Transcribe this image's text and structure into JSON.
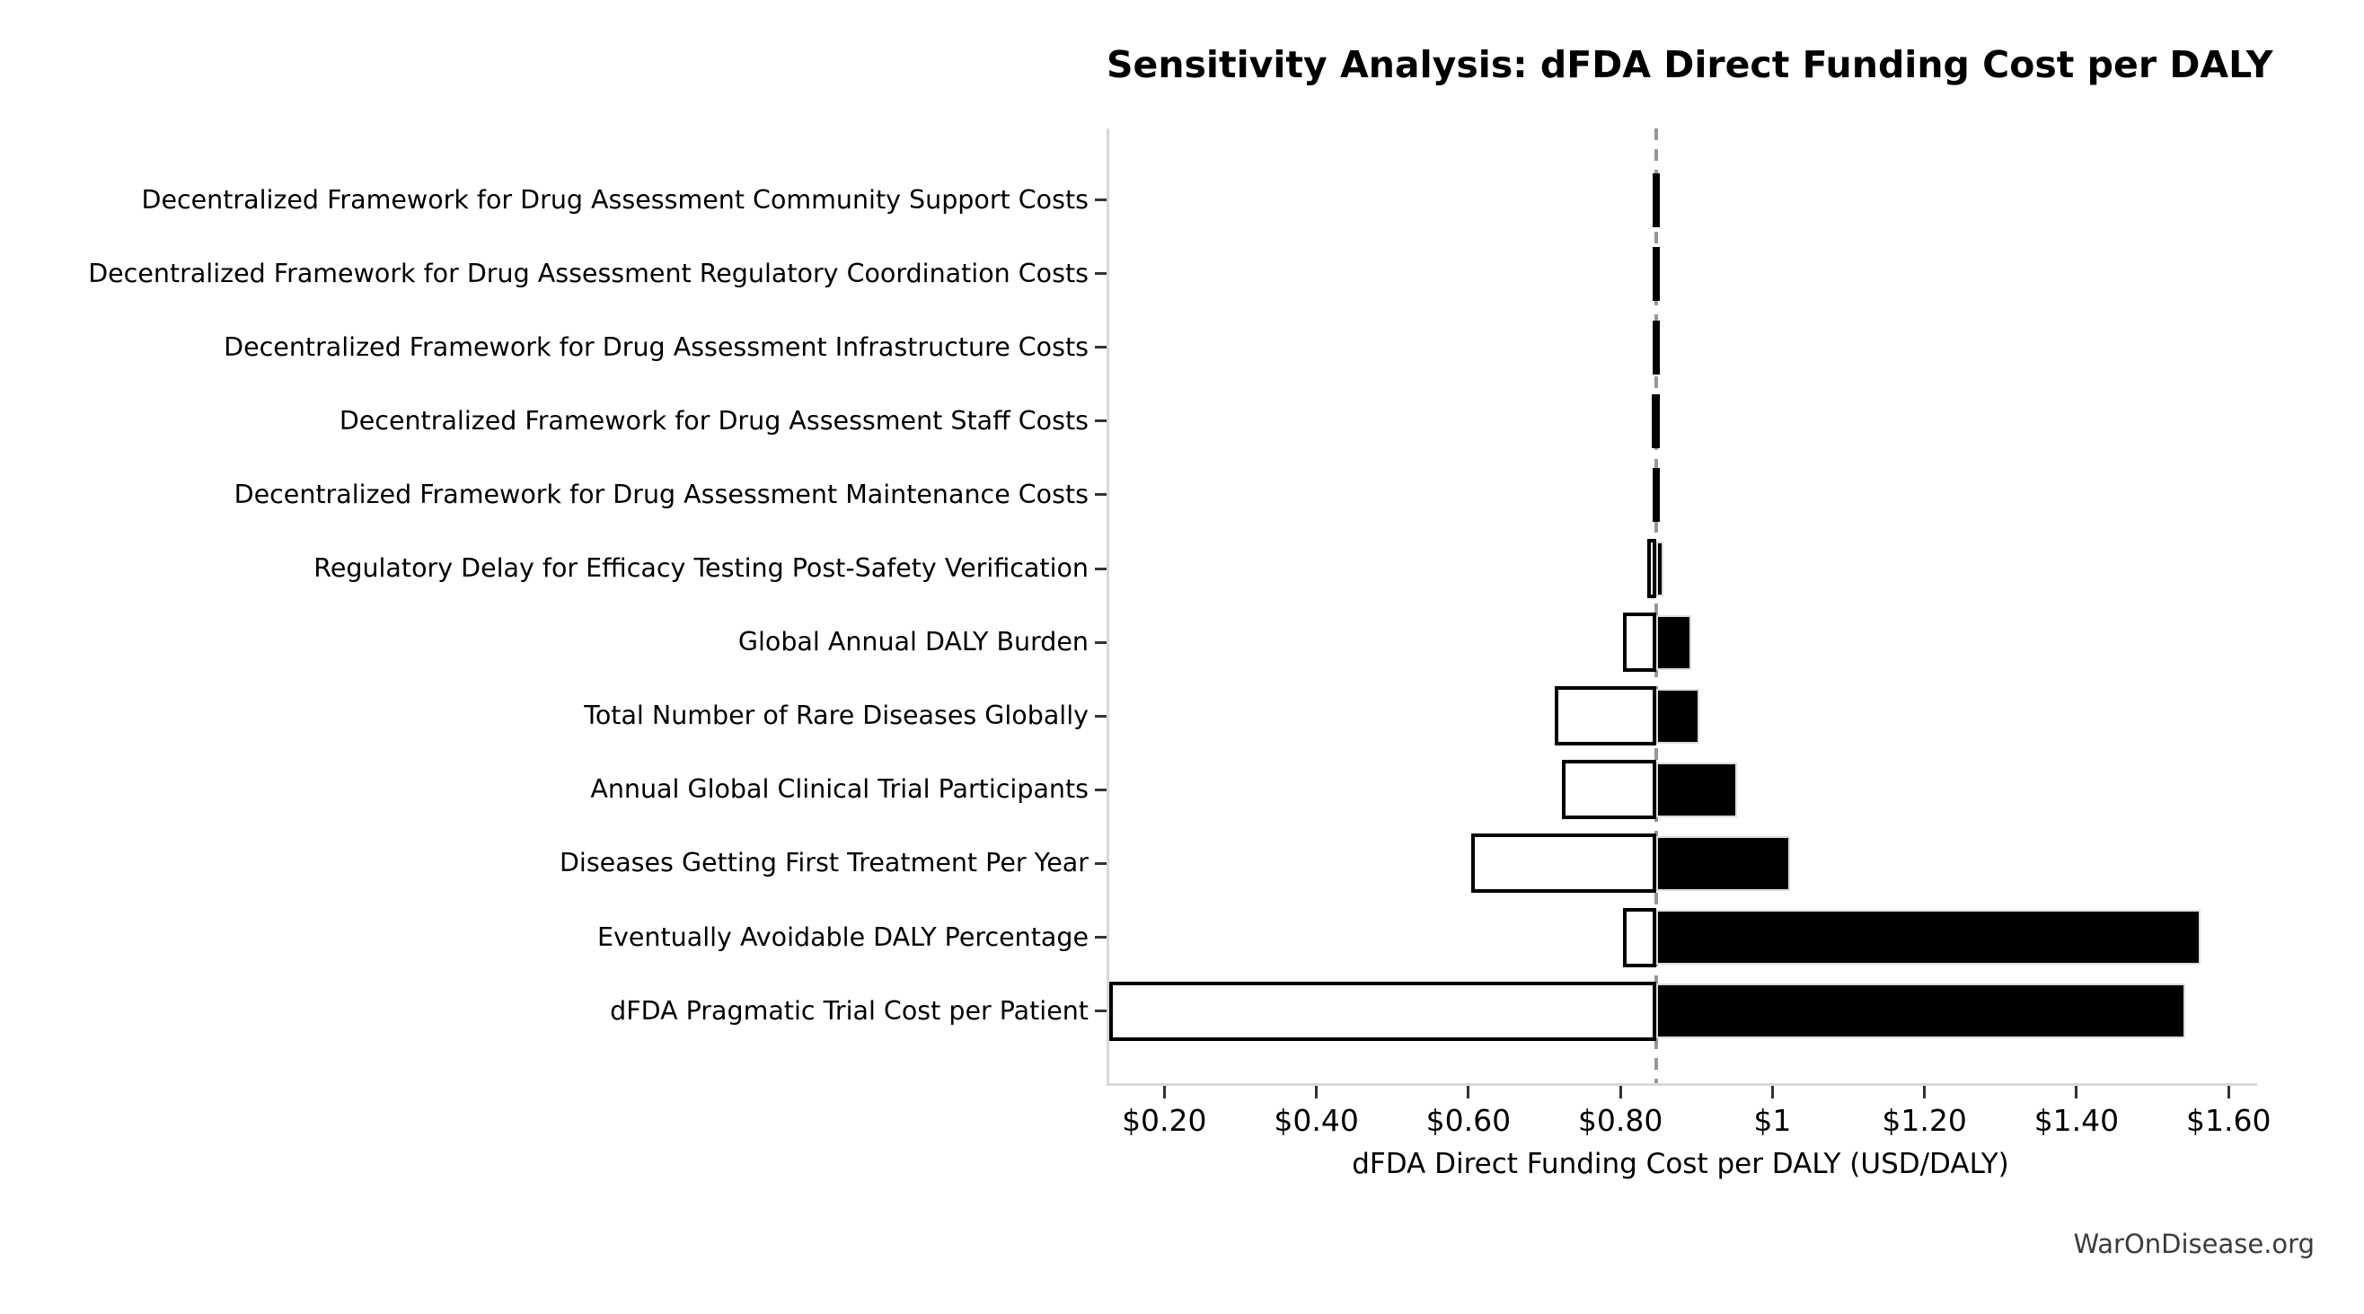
{
  "page": {
    "watermark": "WarOnDisease.org"
  },
  "chart_data": {
    "type": "bar",
    "variant": "tornado-sensitivity",
    "orientation": "horizontal",
    "title": "Sensitivity Analysis: dFDA Direct Funding Cost per DALY",
    "xlabel": "dFDA Direct Funding Cost per DALY (USD/DALY)",
    "x_ticks": [
      {
        "value": 0.2,
        "label": "$0.20"
      },
      {
        "value": 0.4,
        "label": "$0.40"
      },
      {
        "value": 0.6,
        "label": "$0.60"
      },
      {
        "value": 0.8,
        "label": "$0.80"
      },
      {
        "value": 1.0,
        "label": "$1"
      },
      {
        "value": 1.2,
        "label": "$1.20"
      },
      {
        "value": 1.4,
        "label": "$1.40"
      },
      {
        "value": 1.6,
        "label": "$1.60"
      }
    ],
    "xlim": [
      0.124,
      1.634
    ],
    "baseline": 0.844,
    "grid": false,
    "legend": null,
    "colors": {
      "low_bar_fill": "#ffffff",
      "high_bar_fill": "#000000",
      "bar_edge": "#000000",
      "baseline_line": "#979797",
      "spine": "#d8d8d8"
    },
    "rows": [
      {
        "label": "Decentralized Framework for Drug Assessment Community Support Costs",
        "low": 0.839,
        "high": 0.848
      },
      {
        "label": "Decentralized Framework for Drug Assessment Regulatory Coordination Costs",
        "low": 0.839,
        "high": 0.848
      },
      {
        "label": "Decentralized Framework for Drug Assessment Infrastructure Costs",
        "low": 0.839,
        "high": 0.848
      },
      {
        "label": "Decentralized Framework for Drug Assessment Staff Costs",
        "low": 0.838,
        "high": 0.848
      },
      {
        "label": "Decentralized Framework for Drug Assessment Maintenance Costs",
        "low": 0.839,
        "high": 0.848
      },
      {
        "label": "Regulatory Delay for Efficacy Testing Post-Safety Verification",
        "low": 0.832,
        "high": 0.853
      },
      {
        "label": "Global Annual DALY Burden",
        "low": 0.8,
        "high": 0.89
      },
      {
        "label": "Total Number of Rare Diseases Globally",
        "low": 0.71,
        "high": 0.9
      },
      {
        "label": "Annual Global Clinical Trial Participants",
        "low": 0.72,
        "high": 0.95
      },
      {
        "label": "Diseases Getting First Treatment Per Year",
        "low": 0.6,
        "high": 1.02
      },
      {
        "label": "Eventually Avoidable DALY Percentage",
        "low": 0.8,
        "high": 1.56
      },
      {
        "label": "dFDA Pragmatic Trial Cost per Patient",
        "low": 0.124,
        "high": 1.54
      }
    ]
  }
}
